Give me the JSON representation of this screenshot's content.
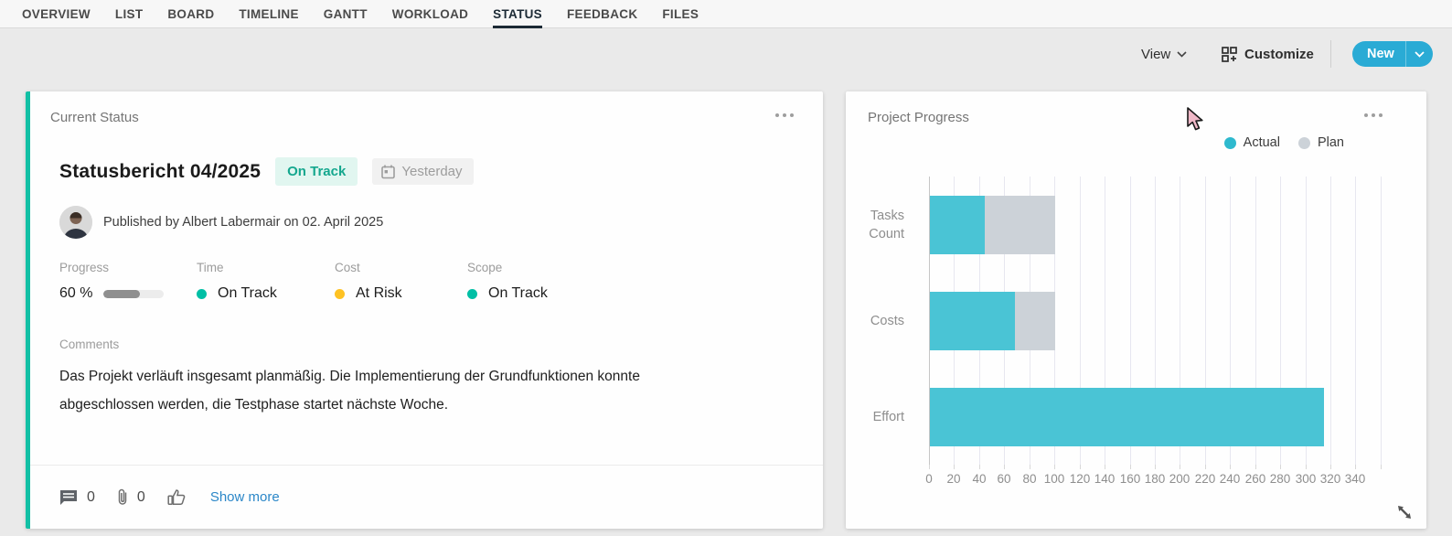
{
  "tabs": {
    "items": [
      {
        "label": "OVERVIEW",
        "active": false
      },
      {
        "label": "LIST",
        "active": false
      },
      {
        "label": "BOARD",
        "active": false
      },
      {
        "label": "TIMELINE",
        "active": false
      },
      {
        "label": "GANTT",
        "active": false
      },
      {
        "label": "WORKLOAD",
        "active": false
      },
      {
        "label": "STATUS",
        "active": true
      },
      {
        "label": "FEEDBACK",
        "active": false
      },
      {
        "label": "FILES",
        "active": false
      }
    ]
  },
  "toolbar": {
    "view_label": "View",
    "customize_label": "Customize",
    "new_label": "New"
  },
  "status_card": {
    "header": "Current Status",
    "title": "Statusbericht 04/2025",
    "status_badge": "On Track",
    "date_chip": "Yesterday",
    "published_line": "Published by Albert Labermair on 02. April 2025",
    "metrics": [
      {
        "label": "Progress",
        "type": "progress",
        "value": "60 %",
        "percent": 60
      },
      {
        "label": "Time",
        "type": "dot",
        "value": "On Track",
        "dot_color": "#00bfa5"
      },
      {
        "label": "Cost",
        "type": "dot",
        "value": "At Risk",
        "dot_color": "#fec223"
      },
      {
        "label": "Scope",
        "type": "dot",
        "value": "On Track",
        "dot_color": "#00bfa5"
      }
    ],
    "comments_label": "Comments",
    "comments_text": "Das Projekt verläuft insgesamt planmäßig. Die Implementierung der Grundfunktionen konnte abgeschlossen werden, die Testphase startet nächste Woche.",
    "footer": {
      "comments_count": "0",
      "attachments_count": "0",
      "show_more_label": "Show more"
    }
  },
  "progress_card": {
    "header": "Project Progress",
    "legend": [
      {
        "label": "Actual",
        "color": "#2eb9ce"
      },
      {
        "label": "Plan",
        "color": "#ccd2d8"
      }
    ]
  },
  "chart_data": {
    "type": "bar",
    "orientation": "horizontal",
    "title": "Project Progress",
    "categories": [
      "Tasks Count",
      "Costs",
      "Effort"
    ],
    "series": [
      {
        "name": "Actual",
        "color": "#4ac4d5",
        "values": [
          44,
          68,
          314
        ]
      },
      {
        "name": "Plan",
        "color": "#ccd2d8",
        "values": [
          100,
          100,
          null
        ]
      }
    ],
    "x_ticks": [
      0,
      20,
      40,
      60,
      80,
      100,
      120,
      140,
      160,
      180,
      200,
      220,
      240,
      260,
      280,
      300,
      320,
      340
    ],
    "xlim": [
      0,
      360
    ],
    "grid": true,
    "legend_position": "top-right",
    "bar_style": "overlapped"
  },
  "colors": {
    "accent_teal": "#12c0a5",
    "status_green": "#00bfa5",
    "status_yellow": "#fec223",
    "new_button": "#2aabd5",
    "link_blue": "#2b87c8",
    "actual_bar": "#4ac4d5",
    "plan_bar": "#ccd2d8"
  },
  "icons": {
    "menu_dots": "ellipsis",
    "calendar": "calendar",
    "comment": "speech-bubble",
    "attachment": "paperclip",
    "like": "thumb-up",
    "customize": "grid-plus",
    "resize": "diagonal-arrows"
  }
}
